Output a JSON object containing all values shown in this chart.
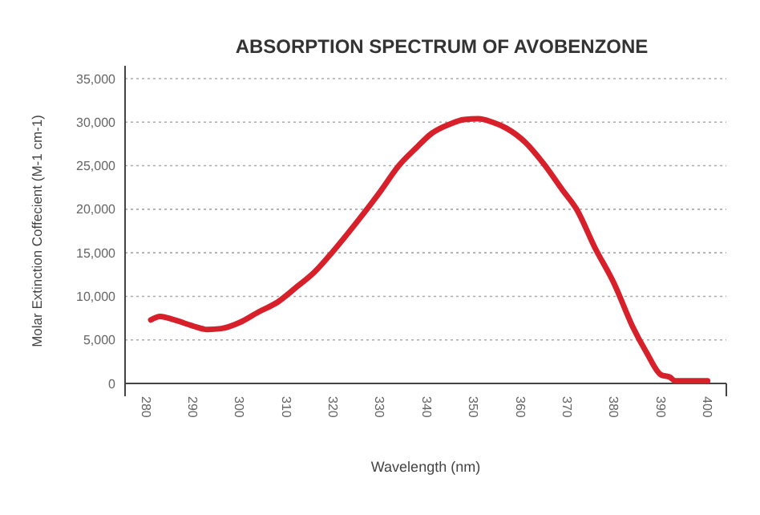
{
  "chart_data": {
    "type": "line",
    "title": "ABSORPTION SPECTRUM OF AVOBENZONE",
    "xlabel": "Wavelength (nm)",
    "ylabel": "Molar Extinction Coffecient (M-1 cm-1)",
    "xlim": [
      275.5,
      404
    ],
    "xticks": [
      280,
      290,
      300,
      310,
      320,
      330,
      340,
      350,
      360,
      370,
      380,
      390,
      400
    ],
    "ylim": [
      0,
      35000
    ],
    "yticks": [
      {
        "value": 0,
        "label": "0"
      },
      {
        "value": 5000,
        "label": "5,000"
      },
      {
        "value": 10000,
        "label": "10,000"
      },
      {
        "value": 15000,
        "label": "15,000"
      },
      {
        "value": 20000,
        "label": "20,000"
      },
      {
        "value": 25000,
        "label": "25,000"
      },
      {
        "value": 30000,
        "label": "30,000"
      },
      {
        "value": 35000,
        "label": "35,000"
      }
    ],
    "grid": "y",
    "marker": "none",
    "line_style": "solid",
    "series": [
      {
        "color": "#d7202a",
        "x": [
          281,
          283,
          286,
          290,
          293,
          296,
          300,
          304,
          308,
          312,
          316,
          320,
          325,
          330,
          334,
          338,
          341,
          345,
          348,
          351,
          354,
          357,
          361,
          365,
          369,
          372,
          376,
          380,
          384,
          387,
          390,
          392,
          393,
          400
        ],
        "values": [
          7300,
          7700,
          7300,
          6600,
          6200,
          6300,
          7000,
          8200,
          9300,
          11000,
          12800,
          15200,
          18500,
          22000,
          25000,
          27200,
          28700,
          29800,
          30300,
          30400,
          30000,
          29300,
          27700,
          25200,
          22200,
          20000,
          15500,
          11500,
          6500,
          3500,
          1000,
          700,
          300,
          300
        ]
      }
    ]
  }
}
